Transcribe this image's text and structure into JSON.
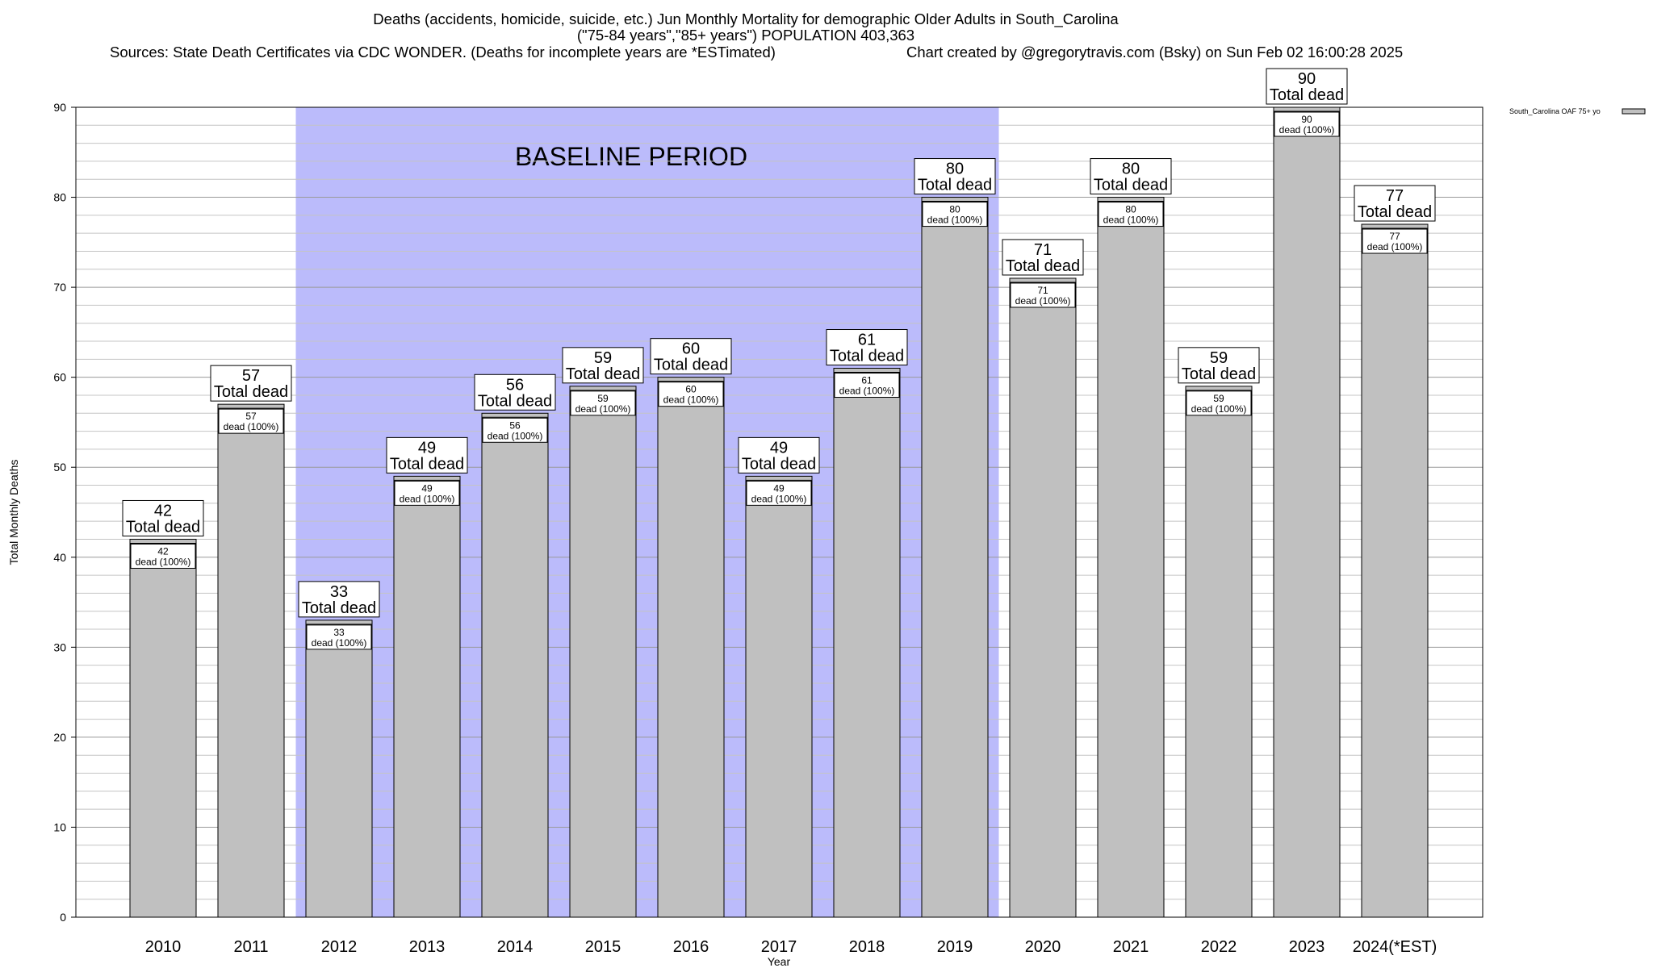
{
  "header": {
    "line1": "Deaths (accidents, homicide, suicide, etc.) Jun Monthly Mortality for demographic Older Adults in South_Carolina",
    "line2": "(\"75-84 years\",\"85+ years\") POPULATION 403,363",
    "sources": "Sources: State Death Certificates via CDC WONDER. (Deaths for incomplete years are *ESTimated)",
    "credit": "Chart created by @gregorytravis.com (Bsky) on Sun Feb 02 16:00:28 2025"
  },
  "chart_data": {
    "type": "bar",
    "title": "Deaths (accidents, homicide, suicide, etc.) Jun Monthly Mortality for demographic Older Adults in South_Carolina",
    "xlabel": "Year",
    "ylabel": "Total Monthly Deaths",
    "ylim": [
      0,
      90
    ],
    "yticks": [
      0,
      10,
      20,
      30,
      40,
      50,
      60,
      70,
      80,
      90
    ],
    "grid": true,
    "legend_position": "top-right",
    "categories": [
      "2010",
      "2011",
      "2012",
      "2013",
      "2014",
      "2015",
      "2016",
      "2017",
      "2018",
      "2019",
      "2020",
      "2021",
      "2022",
      "2023",
      "2024(*EST)"
    ],
    "series": [
      {
        "name": "South_Carolina OAF 75+ yo",
        "values": [
          42,
          57,
          33,
          49,
          56,
          59,
          60,
          49,
          61,
          80,
          71,
          80,
          59,
          90,
          77
        ]
      }
    ],
    "total_label": "Total dead",
    "inner_label": "dead (100%)",
    "annotation": {
      "text": "BASELINE PERIOD",
      "start_category": "2012",
      "end_category": "2019",
      "color": "#bbbbfb"
    },
    "colors": {
      "bar": "#c0c0c0",
      "baseline": "#bbbbfb"
    }
  }
}
